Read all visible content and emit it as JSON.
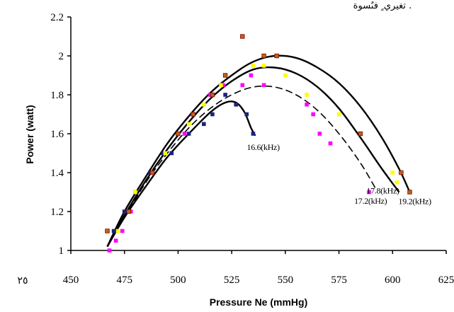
{
  "header_fragment": "تغيري ٍ فىٌسوة .",
  "page_number": "٢٥",
  "chart_data": {
    "type": "scatter",
    "xlabel": "Pressure Ne  (mmHg)",
    "ylabel": "Power (watt)",
    "xlim": [
      450,
      625
    ],
    "ylim": [
      1,
      2.2
    ],
    "x_ticks": [
      "450",
      "475",
      "500",
      "525",
      "550",
      "575",
      "600",
      "625"
    ],
    "y_ticks": [
      "1",
      "1.2",
      "1.4",
      "1.6",
      "1.8",
      "2",
      "2.2"
    ],
    "grid": false,
    "series": [
      {
        "name": "16.6(kHz)",
        "color": "#1a237e",
        "line_style": "solid",
        "points": [
          [
            470,
            1.1
          ],
          [
            475,
            1.2
          ],
          [
            480,
            1.3
          ],
          [
            487,
            1.4
          ],
          [
            493,
            1.5
          ],
          [
            497,
            1.5
          ],
          [
            505,
            1.6
          ],
          [
            512,
            1.65
          ],
          [
            516,
            1.7
          ],
          [
            522,
            1.8
          ],
          [
            527,
            1.75
          ],
          [
            532,
            1.7
          ],
          [
            535,
            1.6
          ]
        ],
        "curve": [
          [
            467,
            1.02
          ],
          [
            475,
            1.17
          ],
          [
            485,
            1.33
          ],
          [
            495,
            1.48
          ],
          [
            505,
            1.6
          ],
          [
            515,
            1.71
          ],
          [
            522,
            1.76
          ],
          [
            527,
            1.76
          ],
          [
            531,
            1.71
          ],
          [
            534,
            1.63
          ],
          [
            536,
            1.59
          ]
        ]
      },
      {
        "name": "17.2(kHz)",
        "color": "#ff00ff",
        "line_style": "dashed",
        "points": [
          [
            468,
            1.0
          ],
          [
            471,
            1.05
          ],
          [
            474,
            1.1
          ],
          [
            478,
            1.2
          ],
          [
            488,
            1.4
          ],
          [
            503,
            1.6
          ],
          [
            515,
            1.8
          ],
          [
            521,
            1.85
          ],
          [
            530,
            1.85
          ],
          [
            534,
            1.9
          ],
          [
            540,
            1.85
          ],
          [
            560,
            1.75
          ],
          [
            563,
            1.7
          ],
          [
            566,
            1.6
          ],
          [
            571,
            1.55
          ],
          [
            589,
            1.3
          ]
        ],
        "curve": [
          [
            467,
            1.02
          ],
          [
            475,
            1.17
          ],
          [
            485,
            1.35
          ],
          [
            495,
            1.5
          ],
          [
            505,
            1.63
          ],
          [
            515,
            1.73
          ],
          [
            525,
            1.8
          ],
          [
            535,
            1.84
          ],
          [
            545,
            1.84
          ],
          [
            555,
            1.8
          ],
          [
            565,
            1.72
          ],
          [
            575,
            1.6
          ],
          [
            585,
            1.45
          ],
          [
            592,
            1.32
          ]
        ]
      },
      {
        "name": "17.8(kHz)",
        "color": "#ffff00",
        "line_style": "solid",
        "points": [
          [
            472,
            1.1
          ],
          [
            480,
            1.3
          ],
          [
            494,
            1.5
          ],
          [
            505,
            1.65
          ],
          [
            512,
            1.75
          ],
          [
            520,
            1.85
          ],
          [
            535,
            1.95
          ],
          [
            540,
            1.95
          ],
          [
            550,
            1.9
          ],
          [
            560,
            1.8
          ],
          [
            575,
            1.7
          ],
          [
            600,
            1.4
          ],
          [
            602,
            1.35
          ]
        ],
        "curve": [
          [
            467,
            1.02
          ],
          [
            475,
            1.18
          ],
          [
            485,
            1.36
          ],
          [
            495,
            1.52
          ],
          [
            505,
            1.66
          ],
          [
            515,
            1.78
          ],
          [
            525,
            1.87
          ],
          [
            535,
            1.93
          ],
          [
            545,
            1.94
          ],
          [
            555,
            1.91
          ],
          [
            565,
            1.84
          ],
          [
            575,
            1.73
          ],
          [
            585,
            1.58
          ],
          [
            595,
            1.42
          ],
          [
            603,
            1.3
          ]
        ]
      },
      {
        "name": "19.2(kHz)",
        "color": "#b5651d",
        "line_style": "solid",
        "points": [
          [
            467,
            1.1
          ],
          [
            477,
            1.2
          ],
          [
            488,
            1.4
          ],
          [
            500,
            1.6
          ],
          [
            507,
            1.7
          ],
          [
            516,
            1.8
          ],
          [
            522,
            1.9
          ],
          [
            530,
            2.1
          ],
          [
            540,
            2.0
          ],
          [
            546,
            2.0
          ],
          [
            585,
            1.6
          ],
          [
            604,
            1.4
          ],
          [
            608,
            1.3
          ]
        ],
        "curve": [
          [
            467,
            1.02
          ],
          [
            475,
            1.2
          ],
          [
            485,
            1.38
          ],
          [
            495,
            1.55
          ],
          [
            505,
            1.69
          ],
          [
            515,
            1.81
          ],
          [
            525,
            1.9
          ],
          [
            535,
            1.97
          ],
          [
            545,
            2.0
          ],
          [
            555,
            1.99
          ],
          [
            565,
            1.94
          ],
          [
            575,
            1.86
          ],
          [
            585,
            1.74
          ],
          [
            595,
            1.58
          ],
          [
            603,
            1.42
          ],
          [
            608,
            1.3
          ]
        ]
      }
    ]
  }
}
